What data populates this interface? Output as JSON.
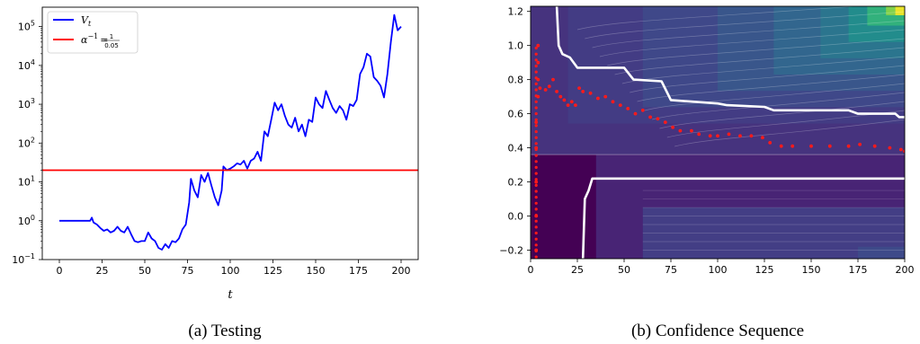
{
  "chart_data": [
    {
      "type": "line",
      "caption": "(a) Testing",
      "xlabel": "t",
      "ylabel": "",
      "xlim": [
        -10,
        210
      ],
      "ylim_log10": [
        -1,
        5.5
      ],
      "yscale": "log",
      "xticks": [
        0,
        25,
        50,
        75,
        100,
        125,
        150,
        175,
        200
      ],
      "ytick_labels": [
        {
          "base": "10",
          "exp": "−1",
          "log10": -1
        },
        {
          "base": "10",
          "exp": "0",
          "log10": 0
        },
        {
          "base": "10",
          "exp": "1",
          "log10": 1
        },
        {
          "base": "10",
          "exp": "2",
          "log10": 2
        },
        {
          "base": "10",
          "exp": "3",
          "log10": 3
        },
        {
          "base": "10",
          "exp": "4",
          "log10": 4
        },
        {
          "base": "10",
          "exp": "5",
          "log10": 5
        }
      ],
      "legend_position": "top-left",
      "legend": {
        "vt": {
          "label": "V",
          "sub": "t",
          "color": "#0000ff"
        },
        "alpha": {
          "label": "α",
          "sup": "−1",
          "eq": "=",
          "num": "1",
          "den": "0.05",
          "color": "#ff0000"
        }
      },
      "threshold": 20,
      "series": [
        {
          "name": "V_t",
          "color": "#0000ff",
          "points": [
            [
              0,
              1
            ],
            [
              10,
              1
            ],
            [
              18,
              1
            ],
            [
              19,
              1.2
            ],
            [
              20,
              0.9
            ],
            [
              22,
              0.8
            ],
            [
              24,
              0.65
            ],
            [
              26,
              0.55
            ],
            [
              28,
              0.6
            ],
            [
              30,
              0.5
            ],
            [
              32,
              0.55
            ],
            [
              34,
              0.7
            ],
            [
              36,
              0.55
            ],
            [
              38,
              0.5
            ],
            [
              40,
              0.7
            ],
            [
              42,
              0.45
            ],
            [
              44,
              0.3
            ],
            [
              46,
              0.28
            ],
            [
              48,
              0.3
            ],
            [
              50,
              0.3
            ],
            [
              52,
              0.5
            ],
            [
              54,
              0.35
            ],
            [
              56,
              0.3
            ],
            [
              58,
              0.2
            ],
            [
              60,
              0.18
            ],
            [
              62,
              0.25
            ],
            [
              64,
              0.2
            ],
            [
              66,
              0.3
            ],
            [
              68,
              0.28
            ],
            [
              70,
              0.35
            ],
            [
              72,
              0.6
            ],
            [
              74,
              0.8
            ],
            [
              76,
              3
            ],
            [
              77,
              12
            ],
            [
              79,
              6
            ],
            [
              81,
              4
            ],
            [
              83,
              15
            ],
            [
              85,
              10
            ],
            [
              87,
              17
            ],
            [
              89,
              8
            ],
            [
              91,
              4
            ],
            [
              93,
              2.5
            ],
            [
              95,
              6
            ],
            [
              96,
              25
            ],
            [
              98,
              20
            ],
            [
              100,
              22
            ],
            [
              102,
              25
            ],
            [
              104,
              30
            ],
            [
              106,
              28
            ],
            [
              108,
              35
            ],
            [
              110,
              22
            ],
            [
              112,
              35
            ],
            [
              114,
              40
            ],
            [
              116,
              60
            ],
            [
              118,
              35
            ],
            [
              120,
              200
            ],
            [
              122,
              150
            ],
            [
              124,
              400
            ],
            [
              126,
              1100
            ],
            [
              128,
              700
            ],
            [
              130,
              1000
            ],
            [
              132,
              500
            ],
            [
              134,
              300
            ],
            [
              136,
              250
            ],
            [
              138,
              450
            ],
            [
              140,
              200
            ],
            [
              142,
              300
            ],
            [
              144,
              150
            ],
            [
              146,
              400
            ],
            [
              148,
              350
            ],
            [
              150,
              1500
            ],
            [
              152,
              1000
            ],
            [
              154,
              800
            ],
            [
              156,
              2200
            ],
            [
              158,
              1300
            ],
            [
              160,
              800
            ],
            [
              162,
              600
            ],
            [
              164,
              900
            ],
            [
              166,
              700
            ],
            [
              168,
              400
            ],
            [
              170,
              1000
            ],
            [
              172,
              900
            ],
            [
              174,
              1300
            ],
            [
              176,
              6000
            ],
            [
              178,
              9000
            ],
            [
              180,
              20000
            ],
            [
              182,
              17000
            ],
            [
              184,
              5000
            ],
            [
              186,
              4000
            ],
            [
              188,
              3000
            ],
            [
              190,
              1500
            ],
            [
              192,
              6000
            ],
            [
              194,
              40000
            ],
            [
              196,
              200000
            ],
            [
              198,
              80000
            ],
            [
              200,
              100000
            ]
          ]
        },
        {
          "name": "threshold",
          "color": "#ff0000",
          "points": [
            [
              -10,
              20
            ],
            [
              210,
              20
            ]
          ]
        }
      ]
    },
    {
      "type": "heatmap",
      "caption": "(b) Confidence Sequence",
      "xlim": [
        0,
        200
      ],
      "ylim": [
        -0.25,
        1.23
      ],
      "xticks": [
        0,
        25,
        50,
        75,
        100,
        125,
        150,
        175,
        200
      ],
      "yticks": [
        -0.2,
        0.0,
        0.2,
        0.4,
        0.6,
        0.8,
        1.0,
        1.2
      ],
      "colormap": [
        "#440154",
        "#482878",
        "#3e4989",
        "#31688e",
        "#26828e",
        "#1f9e89",
        "#35b779",
        "#6ece58",
        "#b5de2b",
        "#fde725"
      ],
      "divider_y": 0.36,
      "white_upper": [
        [
          14,
          1.23
        ],
        [
          15,
          1.0
        ],
        [
          17,
          0.95
        ],
        [
          21,
          0.93
        ],
        [
          25,
          0.87
        ],
        [
          50,
          0.87
        ],
        [
          55,
          0.8
        ],
        [
          70,
          0.79
        ],
        [
          75,
          0.68
        ],
        [
          100,
          0.66
        ],
        [
          105,
          0.65
        ],
        [
          125,
          0.64
        ],
        [
          130,
          0.62
        ],
        [
          170,
          0.62
        ],
        [
          175,
          0.6
        ],
        [
          195,
          0.6
        ],
        [
          197,
          0.58
        ],
        [
          200,
          0.58
        ]
      ],
      "white_lower": [
        [
          28,
          -0.25
        ],
        [
          29,
          0.1
        ],
        [
          31,
          0.15
        ],
        [
          33,
          0.22
        ],
        [
          200,
          0.22
        ]
      ],
      "red_dots": [
        [
          3,
          -0.2
        ],
        [
          3,
          0
        ],
        [
          3,
          0.2
        ],
        [
          3,
          0.4
        ],
        [
          3,
          0.55
        ],
        [
          4,
          0.7
        ],
        [
          4,
          0.8
        ],
        [
          4,
          0.9
        ],
        [
          4,
          1.0
        ],
        [
          5,
          0.75
        ],
        [
          8,
          0.74
        ],
        [
          10,
          0.76
        ],
        [
          12,
          0.8
        ],
        [
          14,
          0.73
        ],
        [
          16,
          0.7
        ],
        [
          18,
          0.68
        ],
        [
          20,
          0.65
        ],
        [
          22,
          0.67
        ],
        [
          24,
          0.65
        ],
        [
          26,
          0.75
        ],
        [
          28,
          0.73
        ],
        [
          32,
          0.72
        ],
        [
          36,
          0.69
        ],
        [
          40,
          0.7
        ],
        [
          44,
          0.67
        ],
        [
          48,
          0.65
        ],
        [
          52,
          0.63
        ],
        [
          56,
          0.6
        ],
        [
          60,
          0.62
        ],
        [
          64,
          0.58
        ],
        [
          68,
          0.57
        ],
        [
          72,
          0.55
        ],
        [
          76,
          0.52
        ],
        [
          80,
          0.5
        ],
        [
          86,
          0.5
        ],
        [
          90,
          0.48
        ],
        [
          96,
          0.47
        ],
        [
          100,
          0.47
        ],
        [
          106,
          0.48
        ],
        [
          112,
          0.47
        ],
        [
          118,
          0.47
        ],
        [
          124,
          0.46
        ],
        [
          128,
          0.43
        ],
        [
          134,
          0.41
        ],
        [
          140,
          0.41
        ],
        [
          150,
          0.41
        ],
        [
          160,
          0.41
        ],
        [
          170,
          0.41
        ],
        [
          176,
          0.42
        ],
        [
          184,
          0.41
        ],
        [
          192,
          0.4
        ],
        [
          198,
          0.39
        ],
        [
          200,
          0.38
        ]
      ]
    }
  ]
}
